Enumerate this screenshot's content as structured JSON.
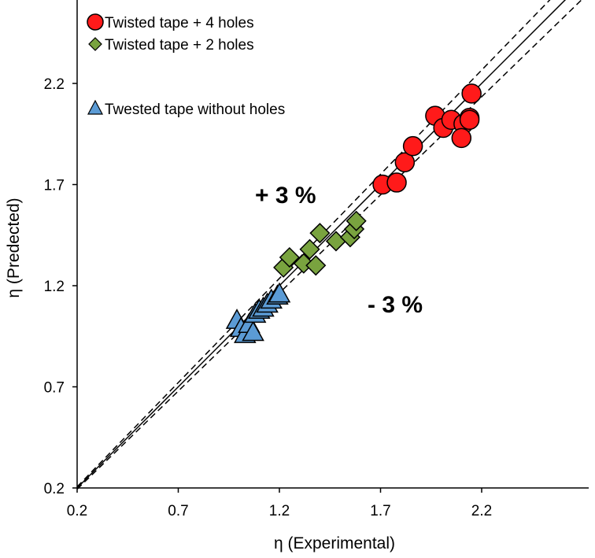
{
  "chart_data": {
    "type": "scatter",
    "xlabel": "η (Experimental)",
    "ylabel": "η (Predected)",
    "xlim": [
      0.2,
      2.7
    ],
    "ylim": [
      0.2,
      2.6
    ],
    "x_ticks": [
      0.2,
      0.7,
      1.2,
      1.7,
      2.2
    ],
    "x_tick_labels": [
      "0.2",
      "0.7",
      "1.2",
      "1.7",
      "2.2"
    ],
    "y_ticks": [
      0.2,
      0.7,
      1.2,
      1.7,
      2.2
    ],
    "y_tick_labels": [
      "0.2",
      "0.7",
      "1.2",
      "1.7",
      "2.2"
    ],
    "grid": false,
    "legend_position": "top-left",
    "reference_lines": [
      {
        "name": "identity",
        "slope": 1.0,
        "style": "solid"
      },
      {
        "name": "plus-3-percent",
        "slope": 1.03,
        "style": "dashed",
        "label": "+ 3 %"
      },
      {
        "name": "minus-3-percent",
        "slope": 0.97,
        "style": "dashed",
        "label": "- 3 %"
      }
    ],
    "series": [
      {
        "name": "Twisted tape + 4 holes",
        "marker": "circle",
        "color": "#ff1a1a",
        "x": [
          1.71,
          1.78,
          1.82,
          1.86,
          1.97,
          2.01,
          2.05,
          2.11,
          2.14,
          2.15,
          2.14,
          2.1
        ],
        "y": [
          1.7,
          1.71,
          1.81,
          1.89,
          2.04,
          1.98,
          2.02,
          2.0,
          2.03,
          2.15,
          2.02,
          1.93
        ]
      },
      {
        "name": "Twisted tape + 2 holes",
        "marker": "diamond",
        "color": "#79a33f",
        "x": [
          1.22,
          1.25,
          1.32,
          1.35,
          1.38,
          1.4,
          1.48,
          1.55,
          1.57,
          1.58
        ],
        "y": [
          1.29,
          1.34,
          1.31,
          1.38,
          1.3,
          1.46,
          1.42,
          1.44,
          1.48,
          1.52
        ]
      },
      {
        "name": "Twested tape without holes",
        "marker": "triangle",
        "color": "#5b9bd5",
        "x": [
          0.99,
          1.01,
          1.03,
          1.05,
          1.07,
          1.08,
          1.1,
          1.12,
          1.14,
          1.16,
          1.19,
          1.2
        ],
        "y": [
          1.03,
          0.99,
          0.96,
          1.01,
          0.97,
          1.06,
          1.08,
          1.09,
          1.11,
          1.13,
          1.15,
          1.16
        ]
      }
    ]
  }
}
